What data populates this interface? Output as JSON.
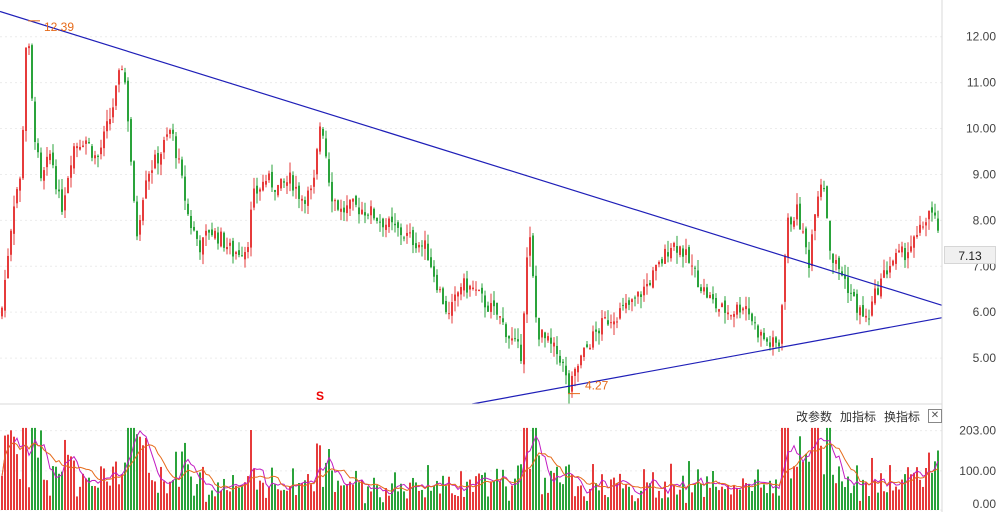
{
  "chart_data": {
    "type": "candlestick",
    "main": {
      "ylim": [
        4.0,
        12.8
      ],
      "y_ticks": [
        "12.00",
        "11.00",
        "10.00",
        "9.00",
        "8.00",
        "7.00",
        "6.00",
        "5.00"
      ],
      "y_tick_values": [
        12,
        11,
        10,
        9,
        8,
        7,
        6,
        5
      ],
      "current_price": "7.13",
      "high_label": "12.39",
      "low_label": "4.27",
      "signal_label": "S",
      "colors": {
        "up": "#e63b3b",
        "down": "#2aa33b",
        "trend": "#1f1fb8",
        "marker": "#e66b1b"
      },
      "price_path_anchors": [
        [
          0,
          5.9
        ],
        [
          8,
          7.5
        ],
        [
          14,
          8.6
        ],
        [
          20,
          8.9
        ],
        [
          26,
          12.39
        ],
        [
          32,
          10.2
        ],
        [
          40,
          8.8
        ],
        [
          50,
          9.5
        ],
        [
          60,
          8.2
        ],
        [
          72,
          9.6
        ],
        [
          84,
          9.8
        ],
        [
          96,
          9.3
        ],
        [
          110,
          10.3
        ],
        [
          122,
          11.5
        ],
        [
          128,
          10.0
        ],
        [
          135,
          7.6
        ],
        [
          145,
          9.0
        ],
        [
          158,
          9.4
        ],
        [
          170,
          10.0
        ],
        [
          178,
          9.2
        ],
        [
          188,
          8.0
        ],
        [
          200,
          7.4
        ],
        [
          208,
          7.8
        ],
        [
          220,
          7.6
        ],
        [
          232,
          7.3
        ],
        [
          246,
          7.4
        ],
        [
          252,
          8.5
        ],
        [
          265,
          8.9
        ],
        [
          278,
          8.7
        ],
        [
          290,
          8.9
        ],
        [
          300,
          8.5
        ],
        [
          312,
          8.6
        ],
        [
          320,
          10.3
        ],
        [
          330,
          8.6
        ],
        [
          340,
          8.2
        ],
        [
          352,
          8.3
        ],
        [
          368,
          8.2
        ],
        [
          380,
          8.0
        ],
        [
          395,
          7.8
        ],
        [
          410,
          7.6
        ],
        [
          425,
          7.4
        ],
        [
          438,
          6.5
        ],
        [
          448,
          5.9
        ],
        [
          460,
          6.6
        ],
        [
          472,
          6.5
        ],
        [
          484,
          6.2
        ],
        [
          498,
          5.9
        ],
        [
          510,
          5.4
        ],
        [
          520,
          5.1
        ],
        [
          528,
          7.8
        ],
        [
          536,
          5.6
        ],
        [
          548,
          5.3
        ],
        [
          560,
          5.0
        ],
        [
          568,
          4.27
        ],
        [
          578,
          4.9
        ],
        [
          590,
          5.4
        ],
        [
          604,
          5.8
        ],
        [
          618,
          6.0
        ],
        [
          632,
          6.2
        ],
        [
          646,
          6.6
        ],
        [
          658,
          7.0
        ],
        [
          670,
          7.5
        ],
        [
          680,
          7.4
        ],
        [
          690,
          7.0
        ],
        [
          702,
          6.5
        ],
        [
          716,
          6.1
        ],
        [
          730,
          6.0
        ],
        [
          744,
          6.2
        ],
        [
          756,
          5.6
        ],
        [
          768,
          5.3
        ],
        [
          778,
          5.3
        ],
        [
          786,
          7.9
        ],
        [
          796,
          8.2
        ],
        [
          808,
          7.1
        ],
        [
          815,
          8.5
        ],
        [
          822,
          9.0
        ],
        [
          830,
          7.2
        ],
        [
          842,
          6.8
        ],
        [
          856,
          6.1
        ],
        [
          866,
          5.8
        ],
        [
          876,
          6.5
        ],
        [
          890,
          7.1
        ],
        [
          904,
          7.3
        ],
        [
          916,
          7.6
        ],
        [
          928,
          8.2
        ],
        [
          938,
          7.8
        ]
      ],
      "trendline_upper": [
        [
          0,
          12.55
        ],
        [
          942,
          6.15
        ]
      ],
      "trendline_lower": [
        [
          472,
          4.0
        ],
        [
          942,
          5.88
        ]
      ]
    },
    "volume": {
      "ylim": [
        0,
        220
      ],
      "y_ticks": [
        "203.00",
        "100.00",
        "0.00"
      ],
      "y_tick_values": [
        203,
        100,
        0
      ]
    }
  },
  "toolbar": {
    "change_params": "改参数",
    "add_indicator": "加指标",
    "switch_indicator": "换指标",
    "close_symbol": "✕"
  }
}
